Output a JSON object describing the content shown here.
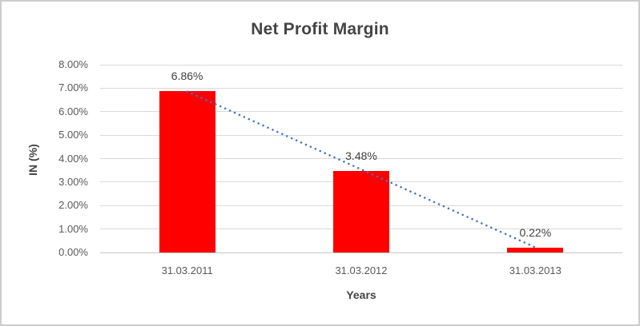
{
  "chart_data": {
    "type": "bar",
    "title": "Net Profit Margin",
    "categories": [
      "31.03.2011",
      "31.03.2012",
      "31.03.2013"
    ],
    "values": [
      6.86,
      3.48,
      0.22
    ],
    "data_labels": [
      "6.86%",
      "3.48%",
      "0.22%"
    ],
    "xlabel": "Years",
    "ylabel": "IN (%)",
    "ylim": [
      0,
      8
    ],
    "ytick_labels": [
      "0.00%",
      "1.00%",
      "2.00%",
      "3.00%",
      "4.00%",
      "5.00%",
      "6.00%",
      "7.00%",
      "8.00%"
    ],
    "grid": true,
    "legend_position": "none",
    "colors": {
      "bar": "#ff0000",
      "trendline": "#4472c4",
      "gridline": "#d9d9d9",
      "title_text": "#444444",
      "tick_text": "#595959",
      "data_label_text": "#404040"
    },
    "trendline": {
      "type": "linear",
      "style": "dotted",
      "from_category_index": 0,
      "from_value": 6.86,
      "to_category_index": 2,
      "to_value": 0.22
    }
  }
}
